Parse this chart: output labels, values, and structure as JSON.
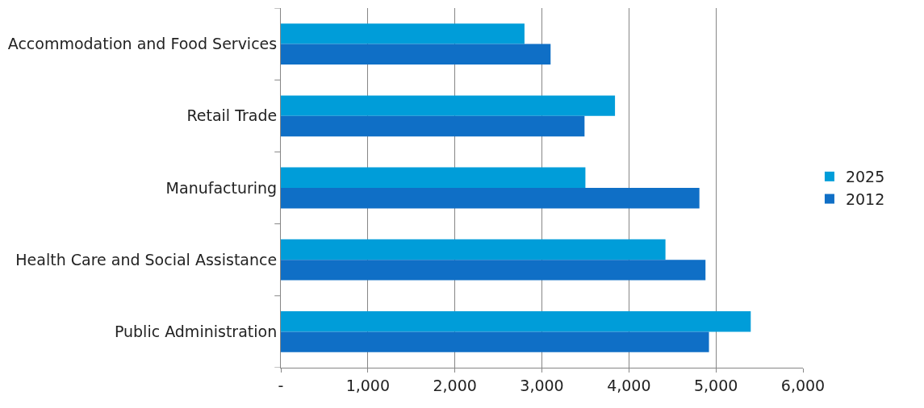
{
  "chart_data": {
    "type": "bar",
    "orientation": "horizontal",
    "categories": [
      "Accommodation and Food Services",
      "Retail Trade",
      "Manufacturing",
      "Health Care and Social Assistance",
      "Public Administration"
    ],
    "series": [
      {
        "name": "2025",
        "color": "#009dd9",
        "values": [
          2800,
          3840,
          3500,
          4420,
          5400
        ]
      },
      {
        "name": "2012",
        "color": "#0f6fc6",
        "values": [
          3100,
          3490,
          4810,
          4880,
          4920
        ]
      }
    ],
    "xlim": [
      0,
      6000
    ],
    "xticks": [
      {
        "value": 0,
        "label": "-"
      },
      {
        "value": 1000,
        "label": "1,000"
      },
      {
        "value": 2000,
        "label": "2,000"
      },
      {
        "value": 3000,
        "label": "3,000"
      },
      {
        "value": 4000,
        "label": "4,000"
      },
      {
        "value": 5000,
        "label": "5,000"
      },
      {
        "value": 6000,
        "label": "6,000"
      }
    ],
    "grid": "x",
    "legend": "right"
  }
}
